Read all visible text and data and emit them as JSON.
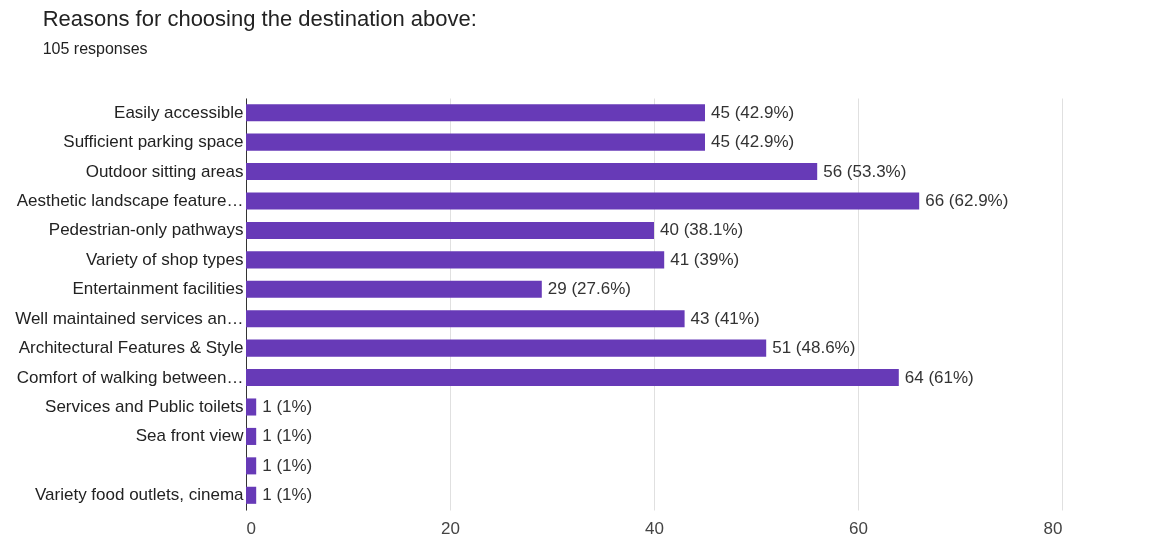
{
  "chart_data": {
    "type": "bar",
    "orientation": "horizontal",
    "title": "Reasons for choosing the destination above:",
    "subtitle": "105 responses",
    "categories": [
      "Easily accessible",
      "Sufficient parking space",
      "Outdoor sitting areas",
      "Aesthetic landscape feature…",
      "Pedestrian-only pathways",
      "Variety of shop types",
      "Entertainment facilities",
      "Well maintained services an…",
      "Architectural Features & Style",
      "Comfort of walking between…",
      "Services and Public toilets",
      "Sea front view",
      null,
      "Variety food outlets, cinema"
    ],
    "values": [
      45,
      45,
      56,
      66,
      40,
      41,
      29,
      43,
      51,
      64,
      1,
      1,
      1,
      1
    ],
    "value_labels": [
      "45 (42.9%)",
      "45 (42.9%)",
      "56 (53.3%)",
      "66 (62.9%)",
      "40 (38.1%)",
      "41 (39%)",
      "29 (27.6%)",
      "43 (41%)",
      "51 (48.6%)",
      "64 (61%)",
      "1 (1%)",
      "1 (1%)",
      "1 (1%)",
      "1 (1%)"
    ],
    "color": "#673ab7",
    "xlim": [
      0,
      80
    ],
    "xticks": [
      0,
      20,
      40,
      60,
      80
    ],
    "grid": "x"
  }
}
